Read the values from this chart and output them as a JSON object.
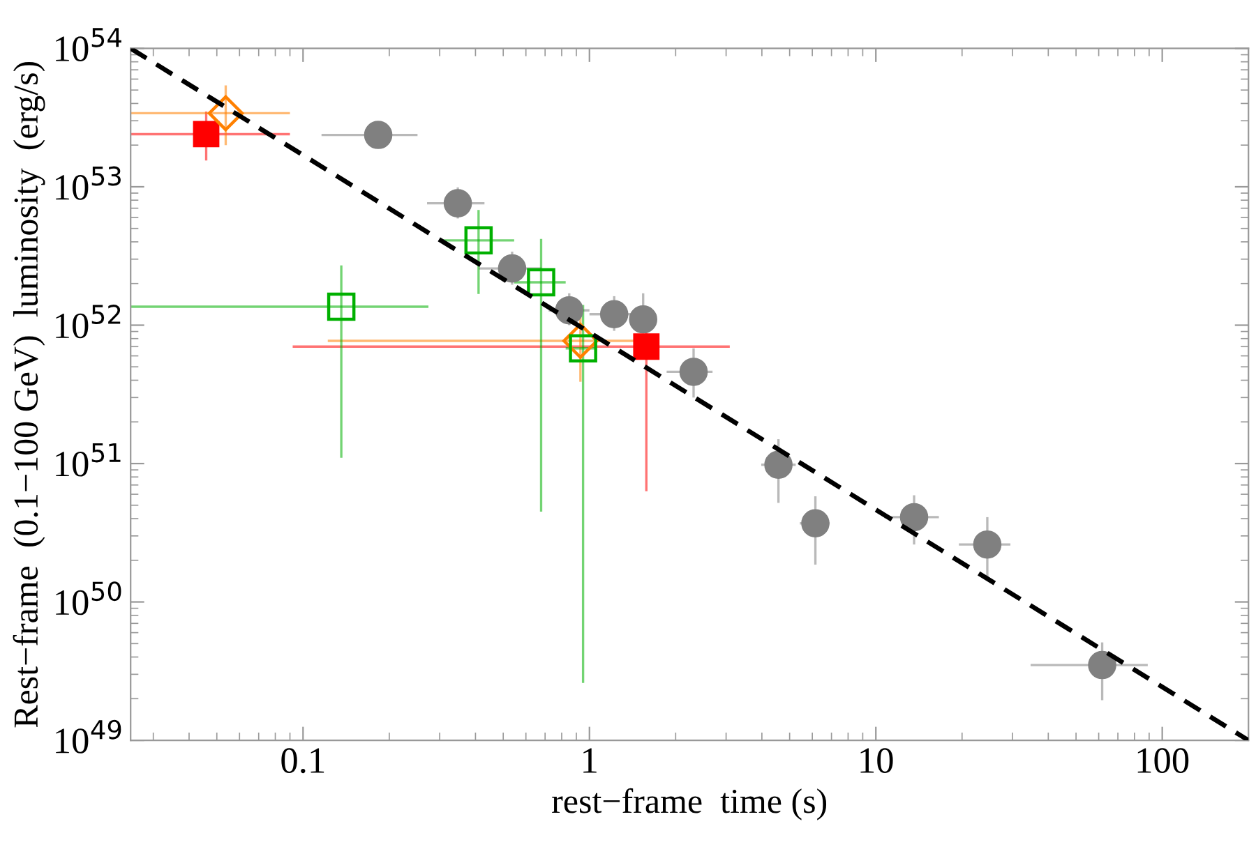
{
  "chart_data": {
    "type": "scatter",
    "xlabel": "rest−frame  time (s)",
    "ylabel": "Rest−frame  (0.1−100 GeV)  luminosity  (erg/s)",
    "log": "xy",
    "grid": false,
    "legend": false,
    "xlim": [
      0.025,
      200
    ],
    "ylim": [
      1e+49,
      1e+54
    ],
    "xticks": [
      0.1,
      1,
      10,
      100
    ],
    "yticks": [
      {
        "value": 1e+49,
        "label": "10$^{49}$"
      },
      {
        "value": 1e+50,
        "label": "10$^{50}$"
      },
      {
        "value": 1e+51,
        "label": "10$^{51}$"
      },
      {
        "value": 1e+52,
        "label": "10$^{52}$"
      },
      {
        "value": 1e+53,
        "label": "10$^{53}$"
      },
      {
        "value": 1e+54,
        "label": "10$^{54}$"
      }
    ],
    "series": [
      {
        "type": "line",
        "color": "#000000",
        "line_style": "dashed",
        "marker": "none",
        "x": [
          0.025,
          200
        ],
        "values": [
          1e+54,
          1e+49
        ]
      },
      {
        "color": "#808080",
        "marker": "circle",
        "x": [
          0.183,
          0.347,
          0.537,
          0.85,
          1.22,
          1.54,
          2.31,
          4.57,
          6.15,
          13.6,
          24.5,
          61.7
        ],
        "values": [
          2.37e+53,
          7.6e+52,
          2.57e+52,
          1.28e+52,
          1.2e+52,
          1.1e+52,
          4.6e+51,
          9.8e+50,
          3.7e+50,
          4.1e+50,
          2.6e+50,
          3.5e+49
        ],
        "xerrors": [
          [
            0.116,
            0.251
          ],
          [
            0.271,
            0.43
          ],
          [
            0.41,
            0.68
          ],
          [
            0.72,
            1.0
          ],
          [
            1.0,
            1.45
          ],
          null,
          [
            1.86,
            2.69
          ],
          [
            3.98,
            5.25
          ],
          [
            5.43,
            6.9
          ],
          [
            10.7,
            16.6
          ],
          [
            19.5,
            29.5
          ],
          [
            34.7,
            89
          ]
        ],
        "errors": [
          [
            1.95e+53,
            2.9e+53
          ],
          [
            5.9e+52,
            9.9e+52
          ],
          [
            1.96e+52,
            3.4e+52
          ],
          [
            1e+52,
            1.7e+52
          ],
          [
            9.1e+51,
            1.62e+52
          ],
          [
            1.1e+52,
            1.7e+52
          ],
          [
            3e+51,
            6.8e+51
          ],
          [
            5.2e+50,
            1.5e+51
          ],
          [
            1.86e+50,
            5.8e+50
          ],
          [
            2.6e+50,
            5.9e+50
          ],
          [
            1.5e+50,
            4.1e+50
          ],
          [
            1.95e+49,
            5.1e+49
          ]
        ]
      },
      {
        "color": "#ff0000",
        "marker": "square",
        "x": [
          0.0459,
          1.58
        ],
        "values": [
          2.4e+53,
          7e+51
        ],
        "xerrors": [
          [
            0.025,
            0.09
          ],
          [
            0.092,
            3.09
          ]
        ],
        "errors": [
          [
            1.55e+53,
            3.5e+53
          ],
          [
            6.3e+50,
            1.35e+52
          ]
        ]
      },
      {
        "color": "#ff8000",
        "marker": "diamond",
        "x": [
          0.0537,
          0.93
        ],
        "values": [
          3.4e+53,
          7.7e+51
        ],
        "xerrors": [
          [
            0.025,
            0.09
          ],
          [
            0.122,
            1.71
          ]
        ],
        "errors": [
          [
            2e+53,
            5.4e+53
          ],
          [
            3.9e+51,
            1.26e+52
          ]
        ]
      },
      {
        "color": "#00b000",
        "marker": "square",
        "x": [
          0.136,
          0.41,
          0.678,
          0.95
        ],
        "values": [
          1.36e+52,
          4.1e+52,
          2.04e+52,
          6.8e+51
        ],
        "xerrors": [
          [
            0.025,
            0.274
          ],
          [
            0.302,
            0.546
          ],
          [
            0.546,
            0.826
          ],
          [
            0.826,
            1.05
          ]
        ],
        "errors": [
          [
            1.1e+51,
            2.7e+52
          ],
          [
            1.68e+52,
            6.8e+52
          ],
          [
            4.5e+50,
            4.2e+52
          ],
          [
            2.6e+49,
            1.4e+52
          ]
        ]
      }
    ]
  }
}
